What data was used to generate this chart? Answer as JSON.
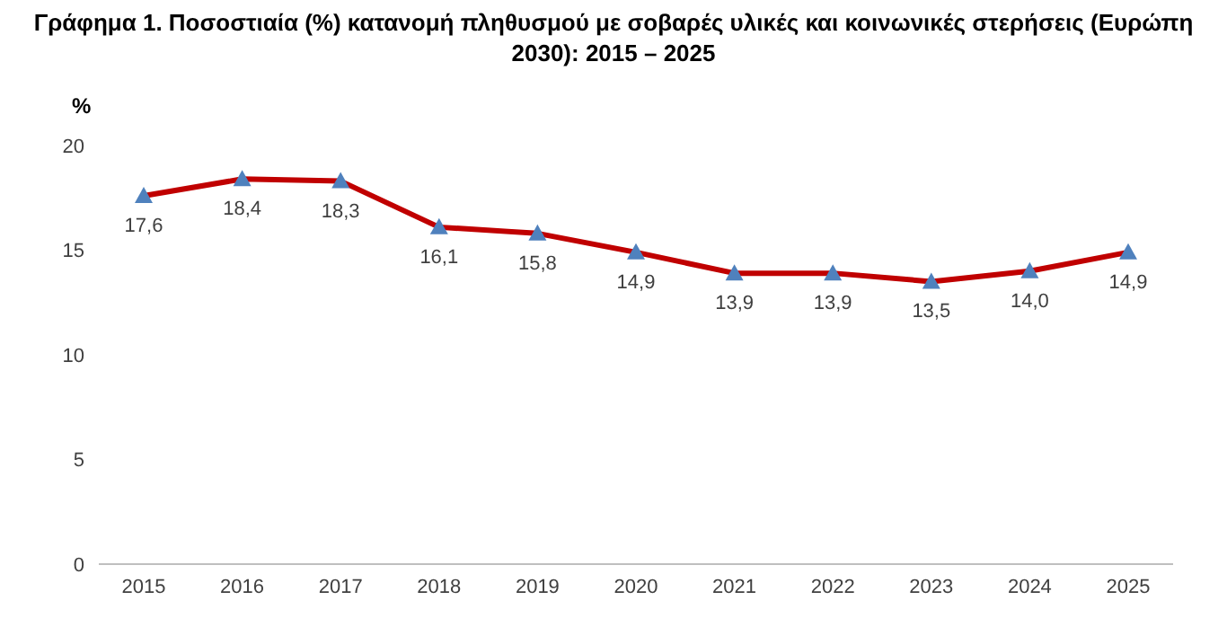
{
  "chart_data": {
    "type": "line",
    "title": "Γράφημα 1. Ποσοστιαία (%) κατανομή πληθυσμού με σοβαρές υλικές και κοινωνικές στερήσεις (Ευρώπη 2030): 2015 – 2025",
    "ylabel": "%",
    "categories": [
      "2015",
      "2016",
      "2017",
      "2018",
      "2019",
      "2020",
      "2021",
      "2022",
      "2023",
      "2024",
      "2025"
    ],
    "series": [
      {
        "color": "#c00000",
        "colors": [
          "#4f81bd",
          "#4f81bd",
          "#4f81bd",
          "#4f81bd",
          "#4f81bd",
          "#4f81bd",
          "#4f81bd",
          "#4f81bd",
          "#4f81bd",
          "#4f81bd",
          "#4f81bd"
        ],
        "values": [
          17.6,
          18.4,
          18.3,
          16.1,
          15.8,
          14.9,
          13.9,
          13.9,
          13.5,
          14.0,
          14.9
        ],
        "value_labels": [
          "17,6",
          "18,4",
          "18,3",
          "16,1",
          "15,8",
          "14,9",
          "13,9",
          "13,9",
          "13,5",
          "14,0",
          "14,9"
        ]
      }
    ],
    "ylim": [
      0,
      20
    ],
    "yticks": [
      0,
      5,
      10,
      15,
      20
    ],
    "marker": "triangle",
    "grid": false,
    "legend": false
  }
}
